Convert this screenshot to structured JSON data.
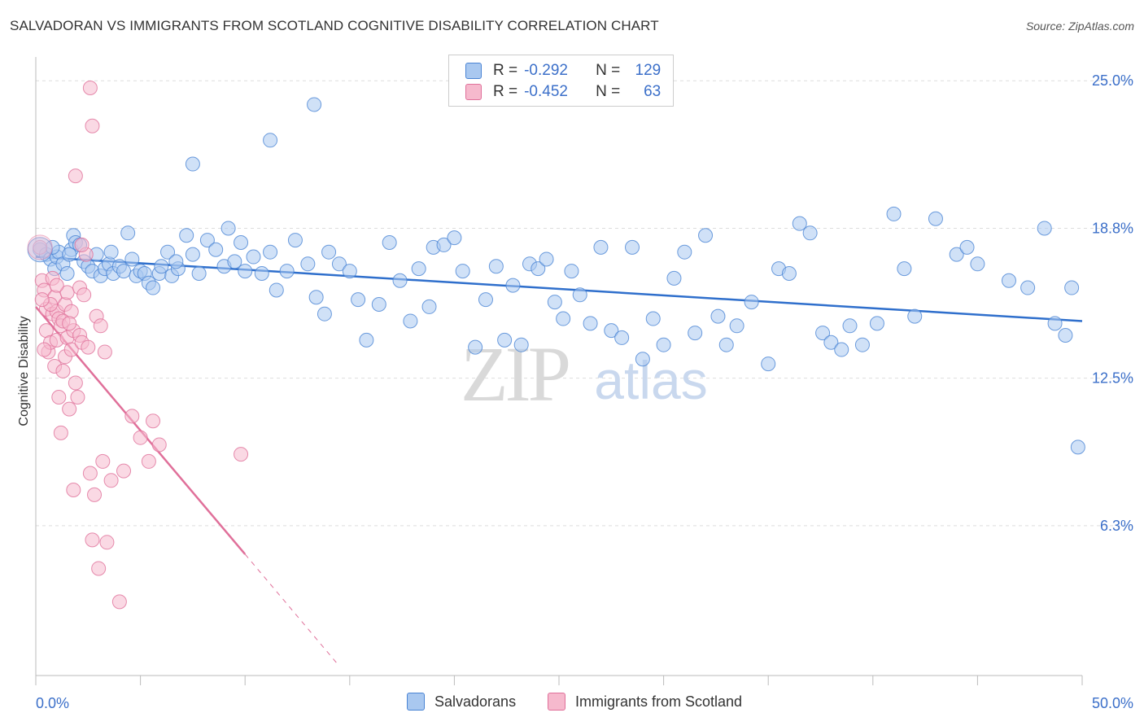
{
  "title": "SALVADORAN VS IMMIGRANTS FROM SCOTLAND COGNITIVE DISABILITY CORRELATION CHART",
  "source": "Source: ZipAtlas.com",
  "watermark": {
    "zip": "ZIP",
    "atlas": "atlas"
  },
  "legend_stats": [
    {
      "r_label": "R =",
      "r_value": "-0.292",
      "n_label": "N =",
      "n_value": "129"
    },
    {
      "r_label": "R =",
      "r_value": "-0.452",
      "n_label": "N =",
      "n_value": "63"
    }
  ],
  "colors": {
    "blue_fill": "#a9c8f0",
    "blue_stroke": "#4a84d4",
    "blue_line": "#2f6fcc",
    "pink_fill": "#f6b9cd",
    "pink_stroke": "#e0709a",
    "pink_line": "#e0709a",
    "tick_text": "#3b6fc9",
    "grid": "#dddddd"
  },
  "chart_data": {
    "type": "scatter",
    "title": "SALVADORAN VS IMMIGRANTS FROM SCOTLAND COGNITIVE DISABILITY CORRELATION CHART",
    "xlabel": "",
    "ylabel": "Cognitive Disability",
    "xlim": [
      0,
      50
    ],
    "ylim": [
      0,
      26
    ],
    "x_tick_labels": [
      "0.0%",
      "50.0%"
    ],
    "y_ticks": [
      6.3,
      12.5,
      18.8,
      25.0
    ],
    "y_tick_labels": [
      "6.3%",
      "12.5%",
      "18.8%",
      "25.0%"
    ],
    "grid": true,
    "legend_position": "bottom",
    "series": [
      {
        "name": "Salvadorans",
        "trend": {
          "x": [
            0,
            50
          ],
          "y": [
            17.6,
            14.9
          ]
        },
        "points": [
          [
            0.2,
            17.9
          ],
          [
            0.5,
            17.7
          ],
          [
            0.7,
            17.5
          ],
          [
            0.9,
            17.1
          ],
          [
            1.0,
            17.6
          ],
          [
            1.1,
            17.8
          ],
          [
            1.3,
            17.3
          ],
          [
            1.5,
            16.9
          ],
          [
            1.7,
            17.9
          ],
          [
            1.8,
            18.5
          ],
          [
            1.9,
            18.2
          ],
          [
            2.3,
            17.4
          ],
          [
            2.5,
            17.2
          ],
          [
            2.7,
            17.0
          ],
          [
            2.9,
            17.7
          ],
          [
            3.1,
            16.8
          ],
          [
            3.3,
            17.1
          ],
          [
            3.5,
            17.3
          ],
          [
            3.6,
            17.8
          ],
          [
            3.7,
            16.9
          ],
          [
            4.0,
            17.2
          ],
          [
            4.2,
            17.0
          ],
          [
            4.6,
            17.5
          ],
          [
            4.8,
            16.8
          ],
          [
            5.0,
            17.0
          ],
          [
            5.2,
            16.9
          ],
          [
            5.4,
            16.5
          ],
          [
            5.6,
            16.3
          ],
          [
            5.9,
            16.9
          ],
          [
            6.0,
            17.2
          ],
          [
            6.3,
            17.8
          ],
          [
            6.5,
            16.8
          ],
          [
            6.8,
            17.1
          ],
          [
            7.2,
            18.5
          ],
          [
            7.5,
            17.7
          ],
          [
            7.8,
            16.9
          ],
          [
            8.2,
            18.3
          ],
          [
            8.6,
            17.9
          ],
          [
            9.0,
            17.2
          ],
          [
            9.2,
            18.8
          ],
          [
            9.5,
            17.4
          ],
          [
            9.8,
            18.2
          ],
          [
            10.0,
            17.0
          ],
          [
            10.4,
            17.6
          ],
          [
            10.8,
            16.9
          ],
          [
            11.2,
            17.8
          ],
          [
            11.5,
            16.2
          ],
          [
            12.0,
            17.0
          ],
          [
            12.4,
            18.3
          ],
          [
            13.0,
            17.3
          ],
          [
            13.4,
            15.9
          ],
          [
            13.8,
            15.2
          ],
          [
            14.0,
            17.8
          ],
          [
            14.5,
            17.3
          ],
          [
            15.0,
            17.0
          ],
          [
            15.4,
            15.8
          ],
          [
            15.8,
            14.1
          ],
          [
            16.4,
            15.6
          ],
          [
            16.9,
            18.2
          ],
          [
            17.4,
            16.6
          ],
          [
            17.9,
            14.9
          ],
          [
            18.3,
            17.1
          ],
          [
            18.8,
            15.5
          ],
          [
            19.0,
            18.0
          ],
          [
            19.5,
            18.1
          ],
          [
            20.0,
            18.4
          ],
          [
            20.4,
            17.0
          ],
          [
            21.0,
            13.8
          ],
          [
            21.5,
            15.8
          ],
          [
            22.0,
            17.2
          ],
          [
            22.4,
            14.1
          ],
          [
            22.8,
            16.4
          ],
          [
            23.2,
            13.9
          ],
          [
            23.6,
            17.3
          ],
          [
            24.0,
            17.1
          ],
          [
            24.4,
            17.5
          ],
          [
            24.8,
            15.7
          ],
          [
            25.2,
            15.0
          ],
          [
            25.6,
            17.0
          ],
          [
            26.0,
            16.0
          ],
          [
            26.5,
            14.8
          ],
          [
            27.0,
            18.0
          ],
          [
            27.5,
            14.5
          ],
          [
            28.0,
            14.2
          ],
          [
            28.5,
            18.0
          ],
          [
            29.0,
            13.3
          ],
          [
            29.5,
            15.0
          ],
          [
            30.0,
            13.9
          ],
          [
            30.5,
            16.7
          ],
          [
            31.0,
            17.8
          ],
          [
            31.5,
            14.4
          ],
          [
            32.0,
            18.5
          ],
          [
            32.6,
            15.1
          ],
          [
            33.0,
            13.9
          ],
          [
            33.5,
            14.7
          ],
          [
            34.2,
            15.7
          ],
          [
            35.0,
            13.1
          ],
          [
            35.5,
            17.1
          ],
          [
            36.0,
            16.9
          ],
          [
            36.5,
            19.0
          ],
          [
            37.0,
            18.6
          ],
          [
            37.6,
            14.4
          ],
          [
            38.0,
            14.0
          ],
          [
            38.5,
            13.7
          ],
          [
            38.9,
            14.7
          ],
          [
            39.5,
            13.9
          ],
          [
            40.2,
            14.8
          ],
          [
            41.0,
            19.4
          ],
          [
            41.5,
            17.1
          ],
          [
            42.0,
            15.1
          ],
          [
            43.0,
            19.2
          ],
          [
            44.0,
            17.7
          ],
          [
            44.5,
            18.0
          ],
          [
            45.0,
            17.3
          ],
          [
            46.5,
            16.6
          ],
          [
            47.4,
            16.3
          ],
          [
            48.2,
            18.8
          ],
          [
            48.7,
            14.8
          ],
          [
            49.2,
            14.3
          ],
          [
            49.5,
            16.3
          ],
          [
            49.8,
            9.6
          ],
          [
            1.6,
            17.7
          ],
          [
            0.8,
            18.0
          ],
          [
            2.1,
            18.1
          ],
          [
            4.4,
            18.6
          ],
          [
            6.7,
            17.4
          ],
          [
            13.3,
            24.0
          ],
          [
            11.2,
            22.5
          ],
          [
            7.5,
            21.5
          ]
        ]
      },
      {
        "name": "Immigrants from Scotland",
        "trend": {
          "x": [
            0,
            10
          ],
          "y": [
            15.5,
            5.1
          ]
        },
        "trend_dashed": {
          "x": [
            10,
            14.5
          ],
          "y": [
            5.1,
            0.4
          ]
        },
        "points": [
          [
            0.2,
            18.0
          ],
          [
            0.3,
            16.6
          ],
          [
            0.4,
            16.2
          ],
          [
            0.5,
            15.4
          ],
          [
            0.5,
            14.5
          ],
          [
            0.6,
            13.6
          ],
          [
            0.7,
            14.0
          ],
          [
            0.8,
            15.2
          ],
          [
            0.8,
            16.7
          ],
          [
            0.9,
            13.0
          ],
          [
            0.9,
            15.9
          ],
          [
            1.0,
            15.3
          ],
          [
            1.0,
            14.1
          ],
          [
            1.1,
            11.7
          ],
          [
            1.1,
            15.0
          ],
          [
            1.2,
            10.2
          ],
          [
            1.2,
            14.7
          ],
          [
            1.3,
            12.8
          ],
          [
            1.4,
            15.6
          ],
          [
            1.4,
            13.4
          ],
          [
            1.5,
            14.2
          ],
          [
            1.5,
            16.1
          ],
          [
            1.6,
            11.2
          ],
          [
            1.7,
            13.7
          ],
          [
            1.7,
            15.3
          ],
          [
            1.8,
            7.8
          ],
          [
            1.8,
            14.5
          ],
          [
            1.9,
            12.3
          ],
          [
            2.0,
            11.7
          ],
          [
            2.1,
            14.3
          ],
          [
            2.1,
            16.3
          ],
          [
            2.2,
            14.0
          ],
          [
            2.3,
            16.0
          ],
          [
            2.4,
            17.7
          ],
          [
            2.5,
            13.8
          ],
          [
            2.6,
            8.5
          ],
          [
            2.7,
            5.7
          ],
          [
            2.8,
            7.6
          ],
          [
            2.9,
            15.1
          ],
          [
            3.0,
            4.5
          ],
          [
            3.1,
            14.7
          ],
          [
            3.2,
            9.0
          ],
          [
            3.3,
            13.6
          ],
          [
            3.4,
            5.6
          ],
          [
            3.6,
            8.2
          ],
          [
            4.0,
            3.1
          ],
          [
            4.2,
            8.6
          ],
          [
            4.6,
            10.9
          ],
          [
            5.0,
            10.0
          ],
          [
            5.4,
            9.0
          ],
          [
            5.6,
            10.7
          ],
          [
            5.9,
            9.7
          ],
          [
            9.8,
            9.3
          ],
          [
            2.6,
            24.7
          ],
          [
            2.7,
            23.1
          ],
          [
            1.9,
            21.0
          ],
          [
            2.2,
            18.1
          ],
          [
            1.3,
            14.9
          ],
          [
            0.7,
            15.6
          ],
          [
            0.4,
            13.7
          ],
          [
            1.0,
            16.4
          ],
          [
            0.3,
            15.8
          ],
          [
            1.6,
            14.8
          ]
        ]
      }
    ]
  },
  "legend": [
    {
      "label": "Salvadorans",
      "color": "#a9c8f0",
      "border": "#4a84d4"
    },
    {
      "label": "Immigrants from Scotland",
      "color": "#f6b9cd",
      "border": "#e0709a"
    }
  ]
}
